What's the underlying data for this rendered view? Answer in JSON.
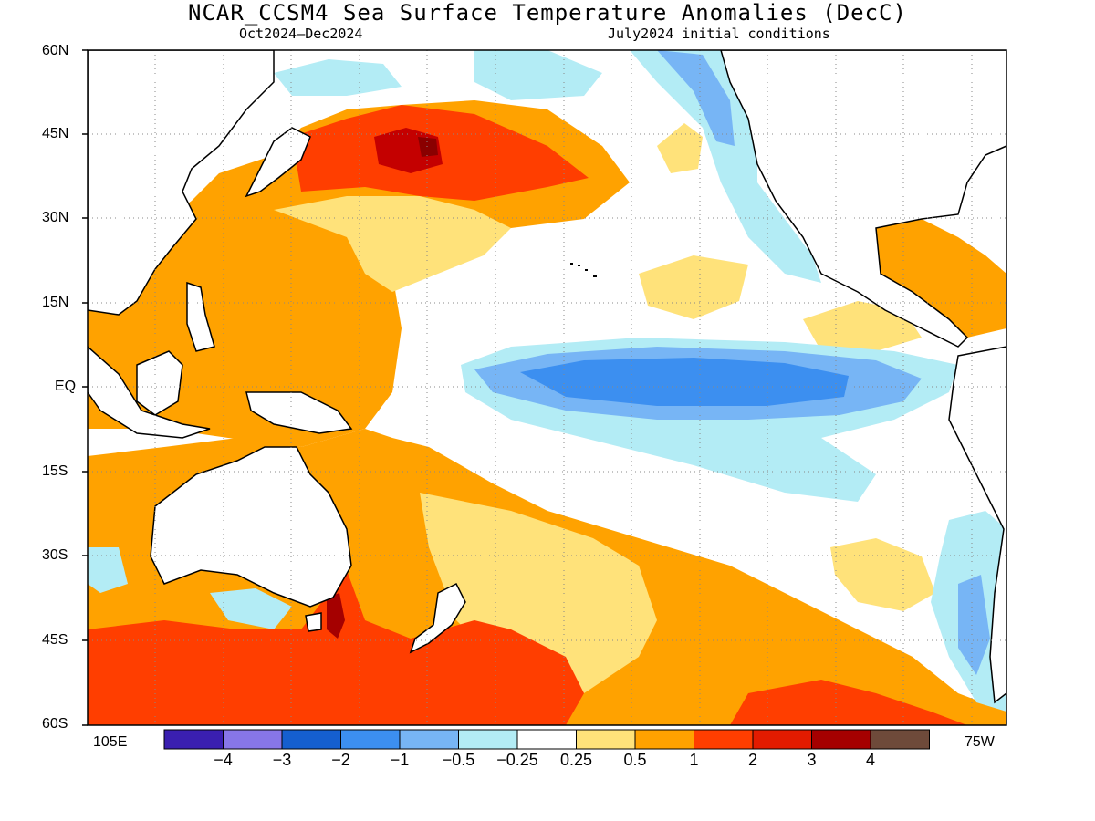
{
  "title": "NCAR_CCSM4 Sea Surface Temperature Anomalies (DecC)",
  "subtitle_left": "Oct2024–Dec2024",
  "subtitle_right": "July2024 initial conditions",
  "lat_labels": [
    "60N",
    "45N",
    "30N",
    "15N",
    "EQ",
    "15S",
    "30S",
    "45S",
    "60S"
  ],
  "lon_left": "105E",
  "lon_right": "75W",
  "colorbar": {
    "colors": [
      "#3a1fb0",
      "#8776e8",
      "#155fcf",
      "#3c8ff0",
      "#77b5f5",
      "#b3ecf5",
      "#ffffff",
      "#ffe27a",
      "#ffa200",
      "#ff3e00",
      "#e31b00",
      "#a50000",
      "#6e4a3a"
    ],
    "labels": [
      "-4",
      "-3",
      "-2",
      "-1",
      "-0.5",
      "-0.25",
      "0.25",
      "0.5",
      "1",
      "2",
      "3",
      "4"
    ]
  },
  "colors": {
    "warm_light": "#ffe27a",
    "warm": "#ffa200",
    "hot": "#ff3e00",
    "very_hot": "#a50000",
    "cool_light": "#b3ecf5",
    "cool": "#77b5f5",
    "cold": "#3c8ff0",
    "land": "#ffffff"
  }
}
